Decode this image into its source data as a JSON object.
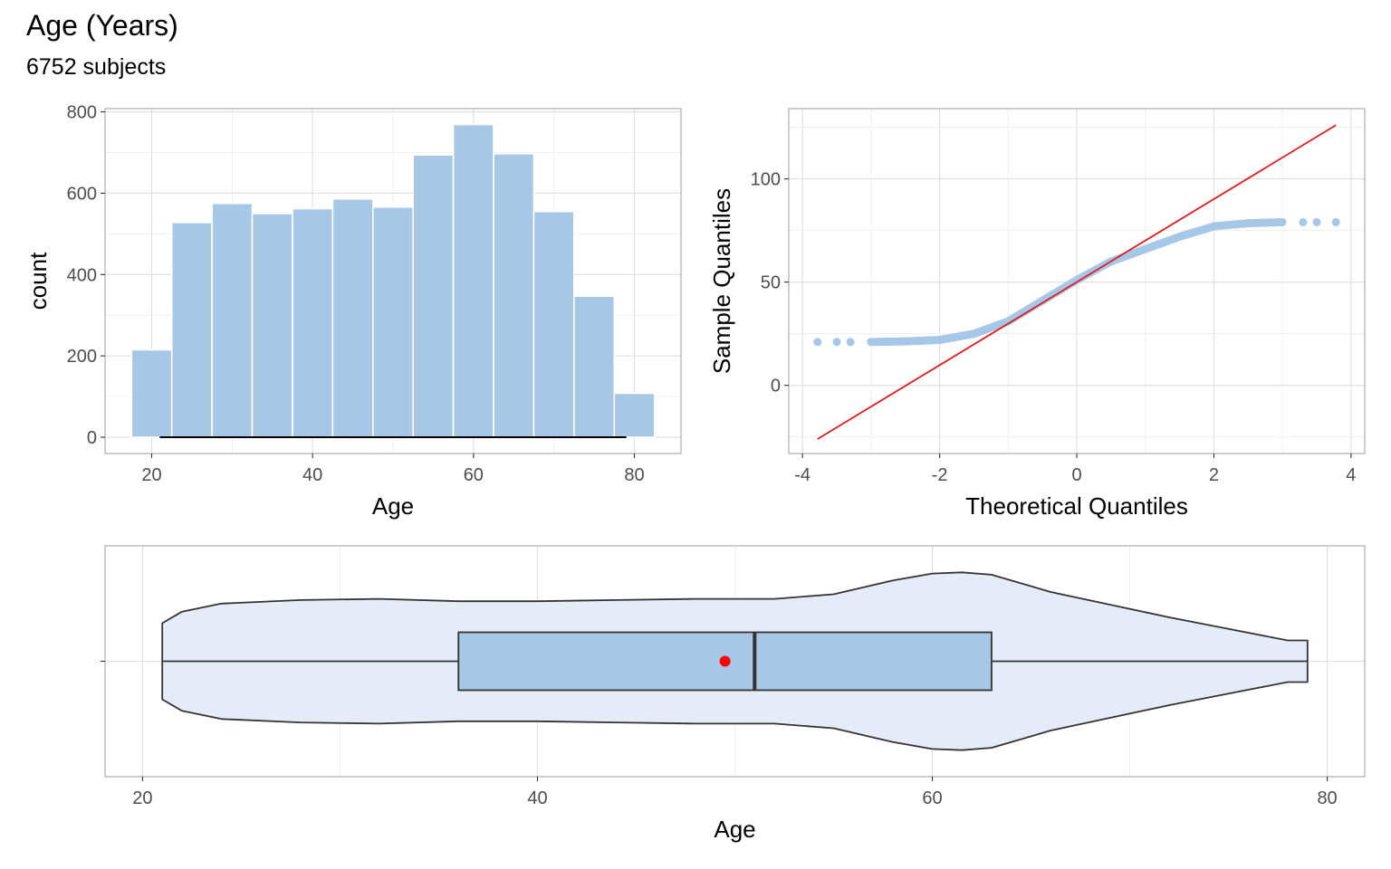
{
  "title": "Age (Years)",
  "subtitle": "6752 subjects",
  "colors": {
    "fill": "#a7c7e7",
    "violet_fill": "#e5ecf8",
    "outline": "#333333",
    "accent_red": "#e31a1c",
    "grid": "#dedede",
    "panel_border": "#b3b3b3"
  },
  "chart_data": [
    {
      "type": "bar",
      "subtype": "histogram",
      "xlabel": "Age",
      "ylabel": "count",
      "xlim": [
        14.2,
        85.8
      ],
      "ylim": [
        -40,
        808
      ],
      "xticks": [
        20,
        40,
        60,
        80
      ],
      "yticks": [
        0,
        200,
        400,
        600,
        800
      ],
      "bin_width": 5,
      "bins": [
        {
          "x0": 17.5,
          "x1": 22.5,
          "count": 215
        },
        {
          "x0": 22.5,
          "x1": 27.5,
          "count": 528
        },
        {
          "x0": 27.5,
          "x1": 32.5,
          "count": 575
        },
        {
          "x0": 32.5,
          "x1": 37.5,
          "count": 550
        },
        {
          "x0": 37.5,
          "x1": 42.5,
          "count": 562
        },
        {
          "x0": 42.5,
          "x1": 47.5,
          "count": 586
        },
        {
          "x0": 47.5,
          "x1": 52.5,
          "count": 566
        },
        {
          "x0": 52.5,
          "x1": 57.5,
          "count": 694
        },
        {
          "x0": 57.5,
          "x1": 62.5,
          "count": 769
        },
        {
          "x0": 62.5,
          "x1": 67.5,
          "count": 697
        },
        {
          "x0": 67.5,
          "x1": 72.5,
          "count": 555
        },
        {
          "x0": 72.5,
          "x1": 77.5,
          "count": 347
        },
        {
          "x0": 77.5,
          "x1": 82.5,
          "count": 108
        }
      ],
      "range_line": {
        "x0": 21,
        "x1": 79,
        "y": 0
      },
      "grid": true
    },
    {
      "type": "scatter",
      "subtype": "qq-plot",
      "xlabel": "Theoretical Quantiles",
      "ylabel": "Sample Quantiles",
      "xlim": [
        -4.2,
        4.2
      ],
      "ylim": [
        -33,
        134
      ],
      "xticks": [
        -4,
        -2,
        0,
        2,
        4
      ],
      "yticks": [
        0,
        50,
        100
      ],
      "points": [
        {
          "x": -3.78,
          "y": 21
        },
        {
          "x": -3.5,
          "y": 21
        },
        {
          "x": -3.3,
          "y": 21
        },
        {
          "x": -3.0,
          "y": 21
        },
        {
          "x": -2.5,
          "y": 21.3
        },
        {
          "x": -2.0,
          "y": 22
        },
        {
          "x": -1.5,
          "y": 25
        },
        {
          "x": -1.0,
          "y": 31
        },
        {
          "x": -0.5,
          "y": 41
        },
        {
          "x": 0.0,
          "y": 51
        },
        {
          "x": 0.5,
          "y": 60
        },
        {
          "x": 1.0,
          "y": 66
        },
        {
          "x": 1.5,
          "y": 72
        },
        {
          "x": 2.0,
          "y": 77
        },
        {
          "x": 2.5,
          "y": 78.5
        },
        {
          "x": 3.0,
          "y": 79
        },
        {
          "x": 3.3,
          "y": 79
        },
        {
          "x": 3.5,
          "y": 79
        },
        {
          "x": 3.78,
          "y": 79
        }
      ],
      "reference_line": {
        "x0": -3.78,
        "y0": -26,
        "x1": 3.78,
        "y1": 126
      },
      "grid": true
    },
    {
      "type": "box",
      "subtype": "violin-box",
      "xlabel": "Age",
      "xlim": [
        18.1,
        81.9
      ],
      "xticks": [
        20,
        40,
        60,
        80
      ],
      "box": {
        "min": 21,
        "q1": 36,
        "median": 51,
        "q3": 63,
        "max": 79,
        "mean": 49.5
      },
      "violin_half_width": [
        {
          "x": 21,
          "w": 0.33
        },
        {
          "x": 22,
          "w": 0.43
        },
        {
          "x": 24,
          "w": 0.5
        },
        {
          "x": 28,
          "w": 0.53
        },
        {
          "x": 32,
          "w": 0.54
        },
        {
          "x": 36,
          "w": 0.52
        },
        {
          "x": 40,
          "w": 0.52
        },
        {
          "x": 44,
          "w": 0.53
        },
        {
          "x": 48,
          "w": 0.54
        },
        {
          "x": 52,
          "w": 0.54
        },
        {
          "x": 55,
          "w": 0.58
        },
        {
          "x": 58,
          "w": 0.7
        },
        {
          "x": 60,
          "w": 0.76
        },
        {
          "x": 61.5,
          "w": 0.77
        },
        {
          "x": 63,
          "w": 0.75
        },
        {
          "x": 66,
          "w": 0.6
        },
        {
          "x": 69,
          "w": 0.49
        },
        {
          "x": 72,
          "w": 0.38
        },
        {
          "x": 75,
          "w": 0.28
        },
        {
          "x": 78,
          "w": 0.18
        },
        {
          "x": 79,
          "w": 0.18
        }
      ],
      "grid": true
    }
  ]
}
